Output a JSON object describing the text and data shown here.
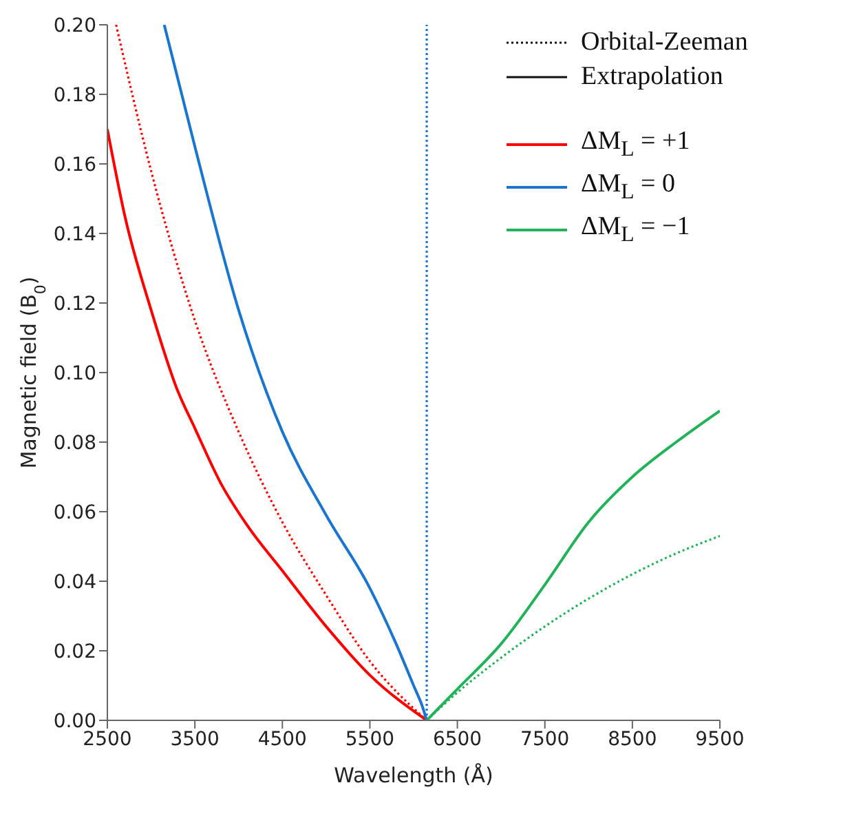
{
  "chart_data": {
    "type": "line",
    "xlabel": "Wavelength (Å)",
    "ylabel": "Magnetic field (B$_{0}$)",
    "xlim": [
      2500,
      9500
    ],
    "xticks": [
      2500,
      3500,
      4500,
      5500,
      6500,
      7500,
      8500,
      9500
    ],
    "ylim": [
      0,
      0.2
    ],
    "yticks": [
      {
        "value": 0,
        "label": "0.00"
      },
      {
        "value": 0.02,
        "label": "0.02"
      },
      {
        "value": 0.04,
        "label": "0.04"
      },
      {
        "value": 0.06,
        "label": "0.06"
      },
      {
        "value": 0.08,
        "label": "0.08"
      },
      {
        "value": 0.1,
        "label": "0.10"
      },
      {
        "value": 0.12,
        "label": "0.12"
      },
      {
        "value": 0.14,
        "label": "0.14"
      },
      {
        "value": 0.16,
        "label": "0.16"
      },
      {
        "value": 0.18,
        "label": "0.18"
      },
      {
        "value": 0.2,
        "label": "0.20"
      }
    ],
    "grid": false,
    "legend": "top right",
    "marker": "none",
    "annotations": [
      "Orbital-Zeeman",
      "Extrapolation"
    ],
    "series": [
      {
        "name": "ΔM$_{L}$ = +1",
        "color": "#ff0000",
        "line_style": "solid",
        "x": [
          2500,
          2700,
          3000,
          3300,
          3500,
          3800,
          4100,
          4500,
          5000,
          5500,
          6150
        ],
        "values": [
          0.17,
          0.145,
          0.118,
          0.095,
          0.084,
          0.068,
          0.056,
          0.043,
          0.027,
          0.013,
          0
        ]
      },
      {
        "name": "ΔM$_{L}$ = 0",
        "color": "#1a75cf",
        "line_style": "solid",
        "x": [
          3150,
          3500,
          4000,
          4500,
          5000,
          5500,
          5800,
          6000,
          6100,
          6150
        ],
        "values": [
          0.2,
          0.165,
          0.118,
          0.083,
          0.059,
          0.038,
          0.022,
          0.01,
          0.004,
          0
        ]
      },
      {
        "name": "ΔM$_{L}$ = −1",
        "color": "#22b35a",
        "line_style": "solid",
        "x": [
          6150,
          6500,
          7000,
          7500,
          8000,
          8500,
          9000,
          9500
        ],
        "values": [
          0,
          0.009,
          0.022,
          0.039,
          0.057,
          0.07,
          0.08,
          0.089
        ]
      },
      {
        "color": "#ff0000",
        "line_style": "dotted",
        "x": [
          2600,
          3000,
          3500,
          4000,
          4500,
          5000,
          5500,
          6150
        ],
        "values": [
          0.2,
          0.158,
          0.115,
          0.083,
          0.057,
          0.036,
          0.017,
          0
        ]
      },
      {
        "color": "#1a75cf",
        "line_style": "dotted",
        "x": [
          6150,
          6150
        ],
        "values": [
          0,
          0.2
        ]
      },
      {
        "color": "#22b35a",
        "line_style": "dotted",
        "x": [
          6150,
          6500,
          7000,
          7500,
          8000,
          8500,
          9000,
          9500
        ],
        "values": [
          0,
          0.008,
          0.018,
          0.027,
          0.035,
          0.042,
          0.048,
          0.053
        ]
      }
    ]
  }
}
